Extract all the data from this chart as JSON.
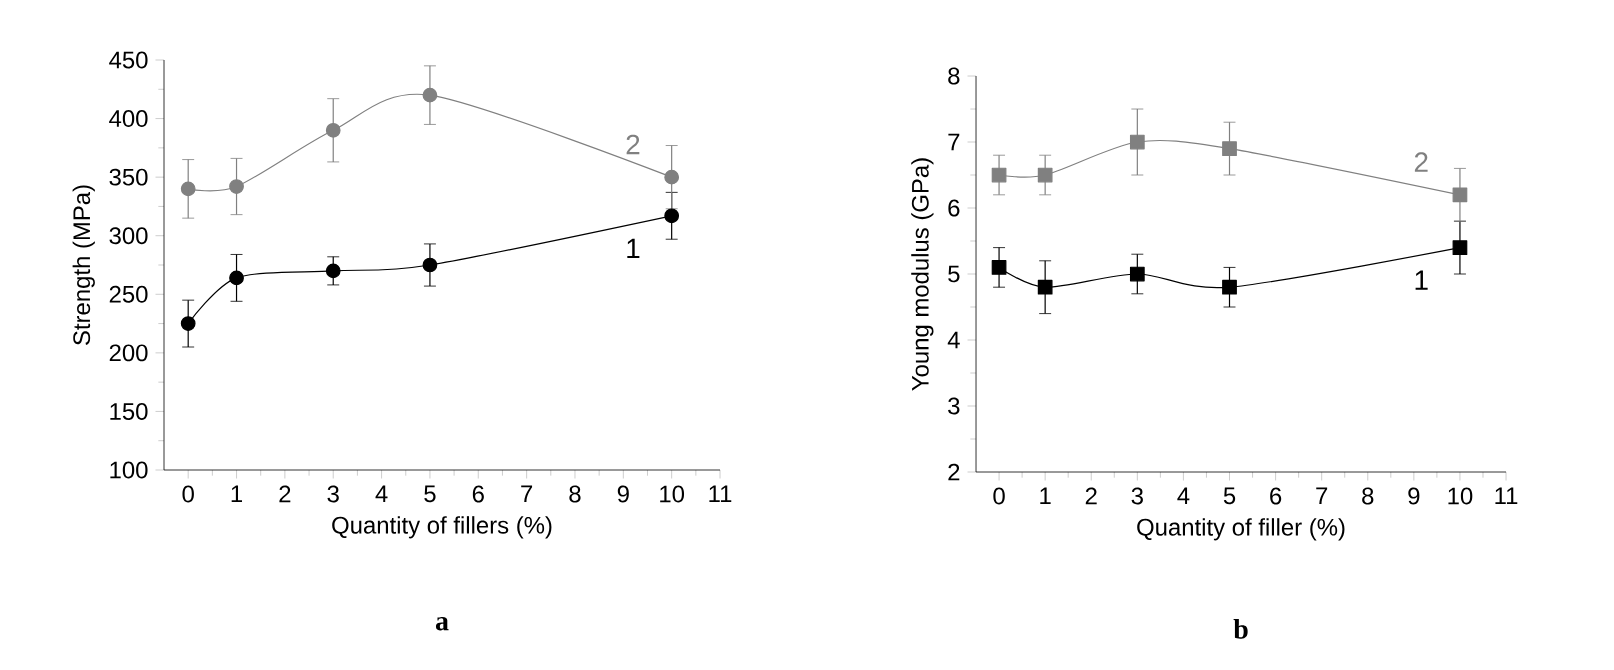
{
  "chart_data": [
    {
      "type": "line",
      "xlabel": "Quantity of fillers (%)",
      "ylabel": "Strength (MPa)",
      "x": [
        0,
        1,
        3,
        5,
        10
      ],
      "xlim": [
        -0.5,
        11
      ],
      "xticks": [
        0,
        1,
        2,
        3,
        4,
        5,
        6,
        7,
        8,
        9,
        10,
        11
      ],
      "ylim": [
        100,
        450
      ],
      "yticks": [
        100,
        150,
        200,
        250,
        300,
        350,
        400,
        450
      ],
      "marker": "circle",
      "annotations": [
        "a"
      ],
      "series": [
        {
          "name": "1",
          "color": "#000000",
          "values": [
            225,
            264,
            270,
            275,
            317
          ],
          "errors": [
            20,
            20,
            12,
            18,
            20
          ]
        },
        {
          "name": "2",
          "color": "#808080",
          "values": [
            340,
            342,
            390,
            420,
            350
          ],
          "errors": [
            25,
            24,
            27,
            25,
            27
          ]
        }
      ]
    },
    {
      "type": "line",
      "xlabel": "Quantity of filler (%)",
      "ylabel": "Young modulus (GPa)",
      "x": [
        0,
        1,
        3,
        5,
        10
      ],
      "xlim": [
        -0.5,
        11
      ],
      "xticks": [
        0,
        1,
        2,
        3,
        4,
        5,
        6,
        7,
        8,
        9,
        10,
        11
      ],
      "ylim": [
        2,
        8
      ],
      "yticks": [
        2,
        3,
        4,
        5,
        6,
        7,
        8
      ],
      "marker": "square",
      "annotations": [
        "b"
      ],
      "series": [
        {
          "name": "1",
          "color": "#000000",
          "values": [
            5.1,
            4.8,
            5.0,
            4.8,
            5.4
          ],
          "errors": [
            0.3,
            0.4,
            0.3,
            0.3,
            0.4
          ]
        },
        {
          "name": "2",
          "color": "#808080",
          "values": [
            6.5,
            6.5,
            7.0,
            6.9,
            6.2
          ],
          "errors": [
            0.3,
            0.3,
            0.5,
            0.4,
            0.4
          ]
        }
      ]
    }
  ]
}
